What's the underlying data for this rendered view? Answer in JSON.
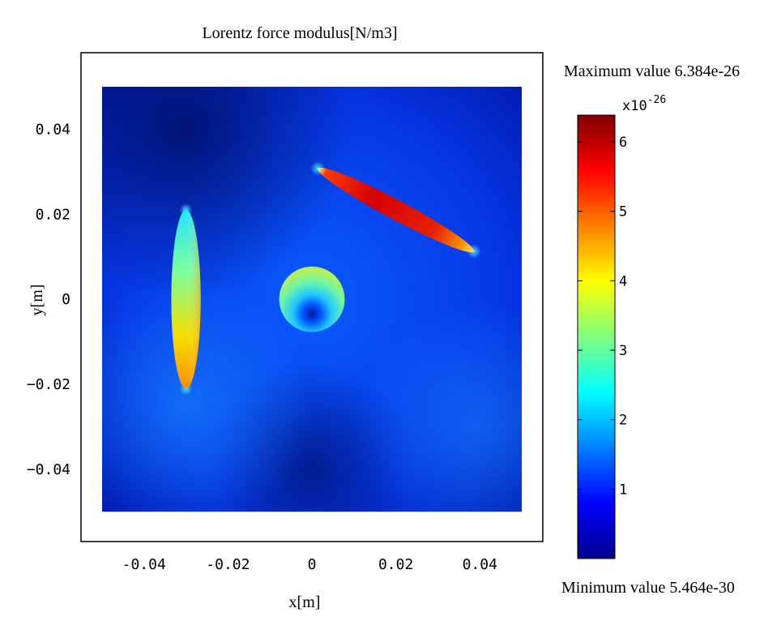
{
  "chart_data": {
    "type": "heatmap",
    "title": "Lorentz force modulus[N/m3]",
    "xlabel": "x[m]",
    "ylabel": "y[m]",
    "xlim": [
      -0.055,
      0.055
    ],
    "ylim": [
      -0.057,
      0.058
    ],
    "domain": {
      "x": [
        -0.05,
        0.05
      ],
      "y": [
        -0.05,
        0.05
      ]
    },
    "xticks": [
      -0.04,
      -0.02,
      0,
      0.02,
      0.04
    ],
    "xtick_labels": [
      "-0.04",
      "-0.02",
      "0",
      "0.02",
      "0.04"
    ],
    "yticks": [
      0.04,
      0.02,
      0,
      -0.02,
      -0.04
    ],
    "ytick_labels": [
      "0.04",
      "0.02",
      "0",
      "−0.02",
      "−0.04"
    ],
    "colorbar": {
      "max_label": "Maximum value 6.384e-26",
      "min_label": "Minimum value 5.464e-30",
      "multiplier_base": "x10",
      "multiplier_exp": "-26",
      "ticks": [
        1,
        2,
        3,
        4,
        5,
        6
      ],
      "tick_labels": [
        "1",
        "2",
        "3",
        "4",
        "5",
        "6"
      ],
      "min": 0.0005464,
      "max": 6.384,
      "colormap": "jet"
    },
    "background_value": 1.0,
    "regions": [
      {
        "name": "vertical-ellipse",
        "shape": "ellipse",
        "center": [
          -0.03,
          0.0
        ],
        "semi_axes": [
          0.0035,
          0.021
        ],
        "rotation_deg": 0,
        "value_range": [
          2.3,
          4.6
        ]
      },
      {
        "name": "circle",
        "shape": "circle",
        "center": [
          0.0,
          0.0
        ],
        "radius": 0.0078,
        "value_range": [
          0.3,
          3.5
        ]
      },
      {
        "name": "tilted-ellipse",
        "shape": "ellipse",
        "center": [
          0.02,
          0.021
        ],
        "semi_axes": [
          0.021,
          0.0023
        ],
        "rotation_deg": -28,
        "value_range": [
          4.6,
          6.38
        ]
      }
    ]
  }
}
